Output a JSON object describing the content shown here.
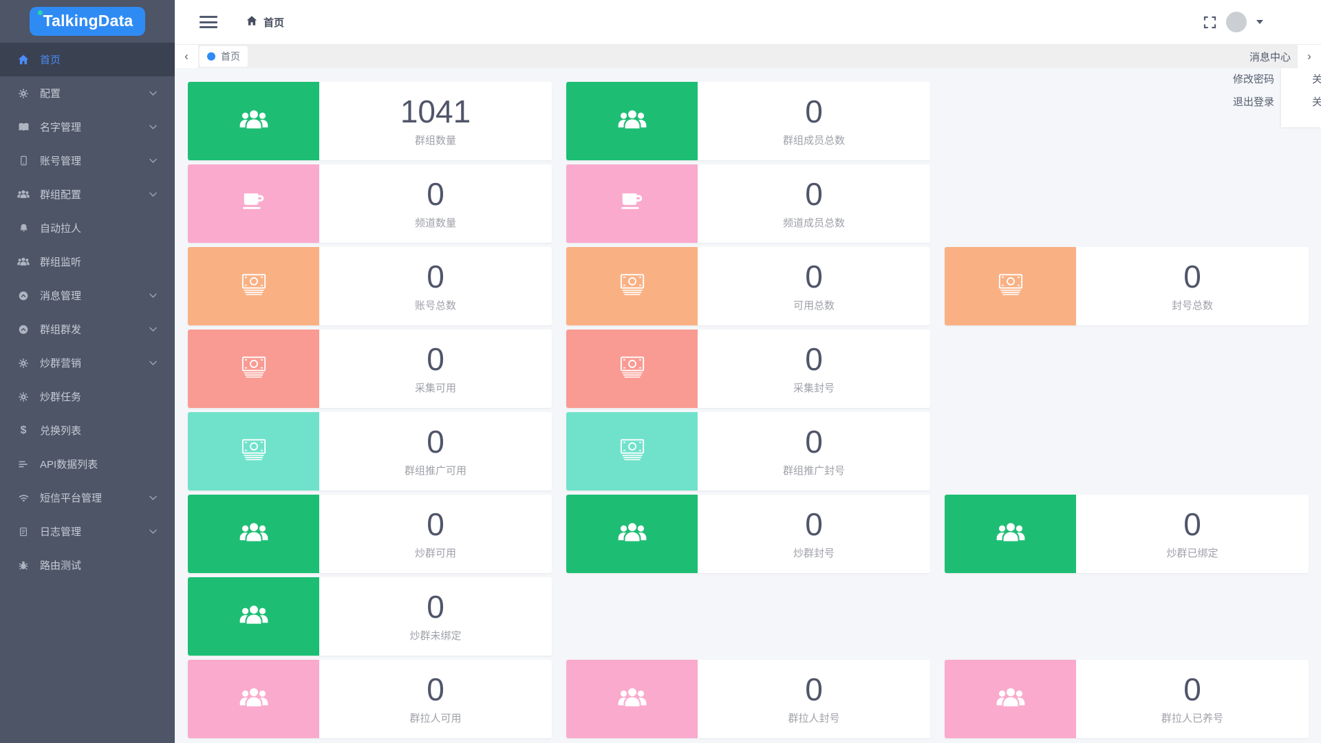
{
  "app": {
    "logo_text": "TalkingData"
  },
  "topbar": {
    "breadcrumb": "首页"
  },
  "tabbar": {
    "active_tab": "首页"
  },
  "user_menu": {
    "message_center": "消息中心",
    "items": [
      "修改密码",
      "退出登录"
    ],
    "clipped_items": [
      "关",
      "关"
    ]
  },
  "sidebar": {
    "items": [
      {
        "label": "首页",
        "icon": "home",
        "active": true,
        "chevron": false
      },
      {
        "label": "配置",
        "icon": "gear",
        "active": false,
        "chevron": true
      },
      {
        "label": "名字管理",
        "icon": "book",
        "active": false,
        "chevron": true
      },
      {
        "label": "账号管理",
        "icon": "mobile",
        "active": false,
        "chevron": true
      },
      {
        "label": "群组配置",
        "icon": "users",
        "active": false,
        "chevron": true
      },
      {
        "label": "自动拉人",
        "icon": "bell",
        "active": false,
        "chevron": false
      },
      {
        "label": "群组监听",
        "icon": "users",
        "active": false,
        "chevron": false
      },
      {
        "label": "消息管理",
        "icon": "msgcircle",
        "active": false,
        "chevron": true
      },
      {
        "label": "群组群发",
        "icon": "msgcircle",
        "active": false,
        "chevron": true
      },
      {
        "label": "炒群营销",
        "icon": "gear",
        "active": false,
        "chevron": true
      },
      {
        "label": "炒群任务",
        "icon": "gear",
        "active": false,
        "chevron": false
      },
      {
        "label": "兑换列表",
        "icon": "dollar",
        "active": false,
        "chevron": false
      },
      {
        "label": "API数据列表",
        "icon": "list",
        "active": false,
        "chevron": false
      },
      {
        "label": "短信平台管理",
        "icon": "wifi",
        "active": false,
        "chevron": true
      },
      {
        "label": "日志管理",
        "icon": "log",
        "active": false,
        "chevron": true
      },
      {
        "label": "路由测试",
        "icon": "bug",
        "active": false,
        "chevron": false
      }
    ]
  },
  "colors": {
    "green": "#1DBE74",
    "pink": "#FAAACD",
    "orange": "#F9B184",
    "salmon": "#F99B93",
    "teal": "#70E2CB",
    "accent_blue": "#2F8BF4"
  },
  "stats": [
    {
      "row": 1,
      "col": 1,
      "color": "green",
      "icon": "users",
      "value": "1041",
      "label": "群组数量"
    },
    {
      "row": 1,
      "col": 2,
      "color": "green",
      "icon": "users",
      "value": "0",
      "label": "群组成员总数"
    },
    {
      "row": 2,
      "col": 1,
      "color": "pink",
      "icon": "coffee",
      "value": "0",
      "label": "频道数量"
    },
    {
      "row": 2,
      "col": 2,
      "color": "pink",
      "icon": "coffee",
      "value": "0",
      "label": "频道成员总数"
    },
    {
      "row": 3,
      "col": 1,
      "color": "orange",
      "icon": "money",
      "value": "0",
      "label": "账号总数"
    },
    {
      "row": 3,
      "col": 2,
      "color": "orange",
      "icon": "money",
      "value": "0",
      "label": "可用总数"
    },
    {
      "row": 3,
      "col": 3,
      "color": "orange",
      "icon": "money",
      "value": "0",
      "label": "封号总数"
    },
    {
      "row": 4,
      "col": 1,
      "color": "salmon",
      "icon": "money",
      "value": "0",
      "label": "采集可用"
    },
    {
      "row": 4,
      "col": 2,
      "color": "salmon",
      "icon": "money",
      "value": "0",
      "label": "采集封号"
    },
    {
      "row": 5,
      "col": 1,
      "color": "teal",
      "icon": "money",
      "value": "0",
      "label": "群组推广可用"
    },
    {
      "row": 5,
      "col": 2,
      "color": "teal",
      "icon": "money",
      "value": "0",
      "label": "群组推广封号"
    },
    {
      "row": 6,
      "col": 1,
      "color": "green",
      "icon": "users",
      "value": "0",
      "label": "炒群可用"
    },
    {
      "row": 6,
      "col": 2,
      "color": "green",
      "icon": "users",
      "value": "0",
      "label": "炒群封号"
    },
    {
      "row": 6,
      "col": 3,
      "color": "green",
      "icon": "users",
      "value": "0",
      "label": "炒群已绑定"
    },
    {
      "row": 7,
      "col": 1,
      "color": "green",
      "icon": "users",
      "value": "0",
      "label": "炒群未绑定"
    },
    {
      "row": 8,
      "col": 1,
      "color": "pink",
      "icon": "users",
      "value": "0",
      "label": "群拉人可用"
    },
    {
      "row": 8,
      "col": 2,
      "color": "pink",
      "icon": "users",
      "value": "0",
      "label": "群拉人封号"
    },
    {
      "row": 8,
      "col": 3,
      "color": "pink",
      "icon": "users",
      "value": "0",
      "label": "群拉人已养号"
    }
  ]
}
